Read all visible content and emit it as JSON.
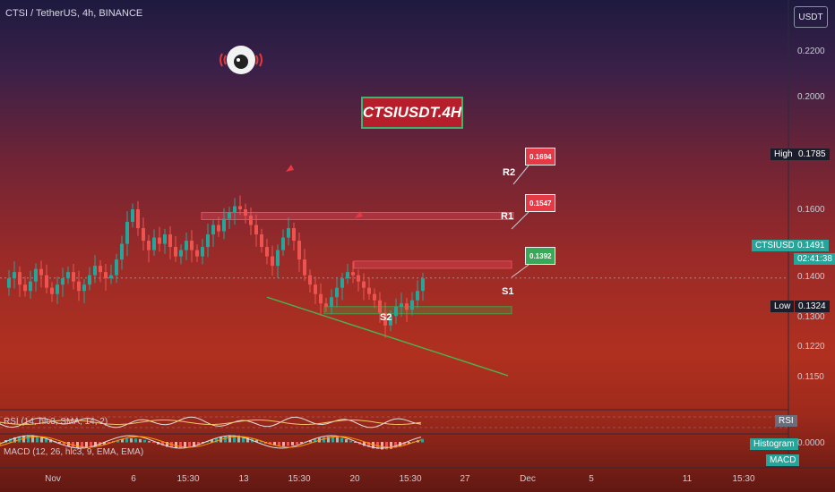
{
  "header": {
    "symbol_title": "CTSI / TetherUS, 4h, BINANCE",
    "currency_button": "USDT",
    "center_title": "CTSIUSDT.4H"
  },
  "levels": {
    "r2_label": "R2",
    "r1_label": "R1",
    "s1_label": "S1",
    "s2_label": "S2",
    "r2_value": "0.1694",
    "r1_value": "0.1547",
    "s1_value": "0.1392"
  },
  "price_scale": {
    "ticks": [
      "0.2200",
      "0.2000",
      "0.1785",
      "0.1600",
      "0.1491",
      "0.1400",
      "0.1300",
      "0.1220",
      "0.1150",
      "0.0000"
    ],
    "high_label": "High",
    "high_value": "0.1785",
    "low_label": "Low",
    "low_value": "0.1324",
    "last_symbol": "CTSIUSDT",
    "last_value": "0.1491",
    "countdown": "02:41:38"
  },
  "indicators": {
    "rsi_label": "RSI (14, hlc3, SMA, 14, 2)",
    "rsi_tag": "RSI",
    "macd_label": "MACD (12, 26, hlc3, 9, EMA, EMA)",
    "macd_hist_tag": "Histogram",
    "macd_tag": "MACD",
    "macd_value": "0.0000"
  },
  "time_axis": [
    "Nov",
    "6",
    "15:30",
    "13",
    "15:30",
    "20",
    "15:30",
    "27",
    "Dec",
    "5",
    "11",
    "15:30"
  ],
  "colors": {
    "up": "#26a69a",
    "down": "#ef5350",
    "resistance": "#e84a5f",
    "support": "#43a047",
    "trendline": "#4caf50"
  },
  "chart_data": {
    "type": "candlestick",
    "symbol": "CTSI / TetherUS",
    "interval": "4h",
    "ylim": [
      0.108,
      0.232
    ],
    "x": [
      "Nov",
      "6",
      "15:30",
      "13",
      "15:30",
      "20",
      "15:30",
      "27",
      "Dec",
      "5",
      "11",
      "15:30"
    ],
    "close_path": [
      0.146,
      0.149,
      0.151,
      0.147,
      0.145,
      0.148,
      0.152,
      0.15,
      0.146,
      0.144,
      0.147,
      0.149,
      0.151,
      0.148,
      0.145,
      0.147,
      0.15,
      0.153,
      0.151,
      0.149,
      0.15,
      0.155,
      0.16,
      0.167,
      0.171,
      0.165,
      0.161,
      0.158,
      0.162,
      0.16,
      0.163,
      0.159,
      0.156,
      0.158,
      0.161,
      0.158,
      0.156,
      0.159,
      0.163,
      0.166,
      0.164,
      0.168,
      0.17,
      0.172,
      0.171,
      0.169,
      0.166,
      0.163,
      0.159,
      0.156,
      0.153,
      0.158,
      0.162,
      0.165,
      0.161,
      0.155,
      0.15,
      0.147,
      0.144,
      0.141,
      0.14,
      0.143,
      0.146,
      0.149,
      0.151,
      0.15,
      0.148,
      0.146,
      0.144,
      0.142,
      0.138,
      0.134,
      0.137,
      0.14,
      0.141,
      0.139,
      0.142,
      0.145,
      0.149
    ],
    "high": 0.1785,
    "low": 0.1324,
    "last": 0.1491,
    "resistance_zones": [
      {
        "name": "R2",
        "from": 0.1685,
        "to": 0.17,
        "value": 0.1694
      },
      {
        "name": "R1",
        "from": 0.1525,
        "to": 0.1545,
        "value": 0.1547
      }
    ],
    "support_zones": [
      {
        "name": "S1",
        "from": 0.1385,
        "to": 0.14,
        "value": 0.1392
      }
    ],
    "trendline": {
      "name": "S2",
      "from": 0.143,
      "to": 0.118
    }
  }
}
